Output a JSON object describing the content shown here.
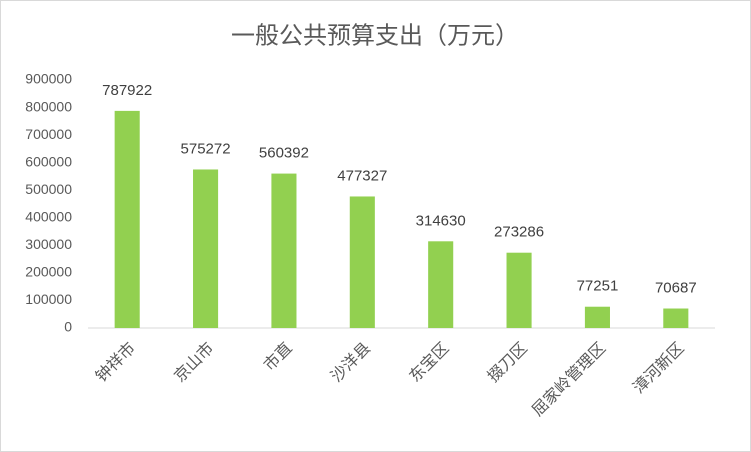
{
  "chart_data": {
    "type": "bar",
    "title": "一般公共预算支出（万元）",
    "categories": [
      "钟祥市",
      "京山市",
      "市直",
      "沙洋县",
      "东宝区",
      "掇刀区",
      "屈家岭管理区",
      "漳河新区"
    ],
    "values": [
      787922,
      575272,
      560392,
      477327,
      314630,
      273286,
      77251,
      70687
    ],
    "color": "#92d050",
    "ylim": [
      0,
      900000
    ],
    "yticks": [
      0,
      100000,
      200000,
      300000,
      400000,
      500000,
      600000,
      700000,
      800000,
      900000
    ],
    "grid": false
  }
}
